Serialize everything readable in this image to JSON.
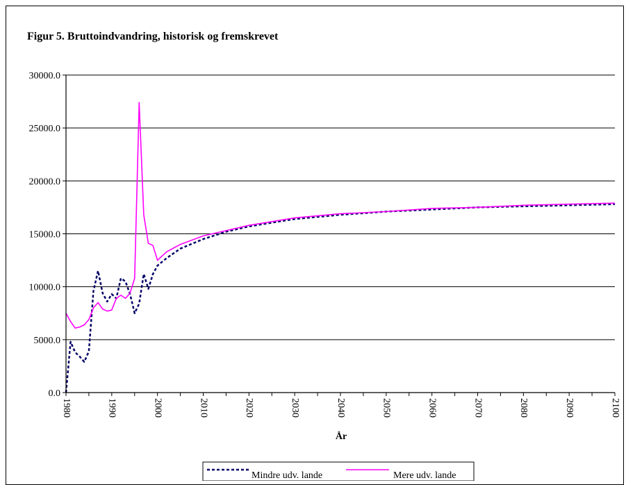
{
  "chart_data": {
    "type": "line",
    "title": "Figur 5. Bruttoindvandring, historisk og fremskrevet",
    "xlabel": "År",
    "ylabel": "",
    "xlim": [
      1980,
      2100
    ],
    "ylim": [
      0,
      30000
    ],
    "grid": true,
    "legend_position": "bottom",
    "y_ticks": [
      "0.0",
      "5000.0",
      "10000.0",
      "15000.0",
      "20000.0",
      "25000.0",
      "30000.0"
    ],
    "x_ticks": [
      "1980",
      "1990",
      "2000",
      "2010",
      "2020",
      "2030",
      "2040",
      "2050",
      "2060",
      "2070",
      "2080",
      "2090",
      "2100"
    ],
    "series": [
      {
        "name": "Mindre udv. lande",
        "color": "#000066",
        "style": "dashed",
        "x": [
          1980,
          1981,
          1982,
          1983,
          1984,
          1985,
          1986,
          1987,
          1988,
          1989,
          1990,
          1991,
          1992,
          1993,
          1994,
          1995,
          1996,
          1997,
          1998,
          1999,
          2000,
          2002,
          2005,
          2010,
          2015,
          2020,
          2030,
          2040,
          2050,
          2060,
          2070,
          2080,
          2090,
          2100
        ],
        "values": [
          0,
          4800,
          3800,
          3400,
          2900,
          3900,
          9600,
          11500,
          9400,
          8600,
          9300,
          8900,
          10800,
          10500,
          9300,
          7500,
          8400,
          11200,
          9800,
          11200,
          12000,
          12700,
          13600,
          14500,
          15200,
          15700,
          16400,
          16800,
          17100,
          17300,
          17500,
          17600,
          17700,
          17800
        ]
      },
      {
        "name": "Mere udv. lande",
        "color": "#ff00ff",
        "style": "solid",
        "x": [
          1980,
          1981,
          1982,
          1983,
          1984,
          1985,
          1986,
          1987,
          1988,
          1989,
          1990,
          1991,
          1992,
          1993,
          1994,
          1995,
          1996,
          1997,
          1998,
          1999,
          2000,
          2002,
          2005,
          2010,
          2015,
          2020,
          2030,
          2040,
          2050,
          2060,
          2070,
          2080,
          2090,
          2100
        ],
        "values": [
          7500,
          6700,
          6100,
          6200,
          6400,
          6900,
          8000,
          8500,
          7900,
          7700,
          7800,
          8900,
          9200,
          8900,
          9400,
          10800,
          27400,
          16800,
          14100,
          13900,
          12500,
          13300,
          14000,
          14800,
          15300,
          15800,
          16500,
          16900,
          17100,
          17400,
          17500,
          17700,
          17800,
          17900
        ]
      }
    ]
  }
}
